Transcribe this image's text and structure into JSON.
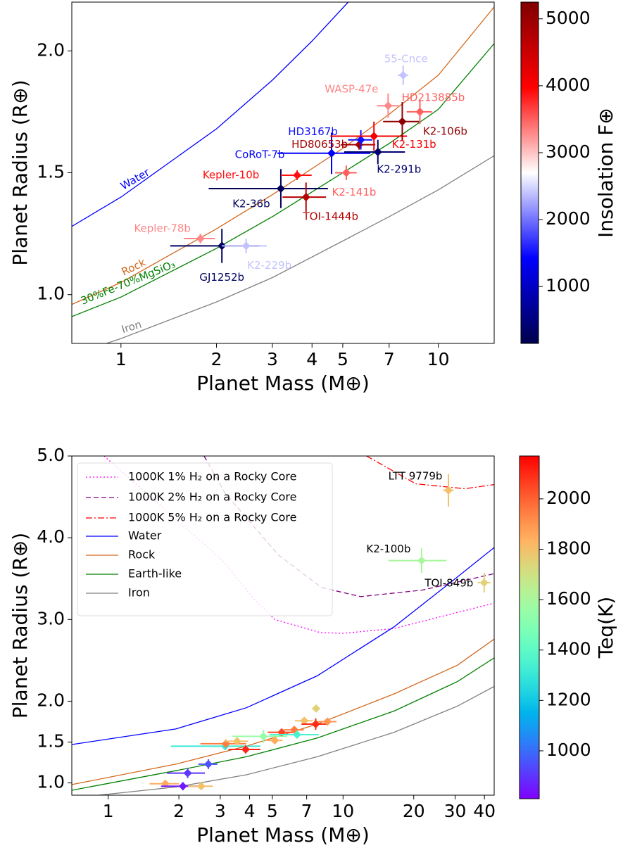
{
  "chart_data": [
    {
      "type": "scatter",
      "xlabel": "Planet Mass (M⊕)",
      "ylabel": "Planet Radius (R⊕)",
      "xscale": "log",
      "yscale": "linear",
      "xlim": [
        0.7,
        15
      ],
      "ylim": [
        0.8,
        2.2
      ],
      "xticks": [
        1,
        2,
        3,
        4,
        5,
        7,
        10
      ],
      "yticks": [
        {
          "value": 1,
          "label": "1.0"
        },
        {
          "value": 1.5,
          "label": "1.5"
        },
        {
          "value": 2,
          "label": "2.0"
        }
      ],
      "legend": false,
      "curves": [
        {
          "name": "Water",
          "color": "#0000ff",
          "dash": "solid",
          "x": [
            0.7,
            1,
            2,
            3,
            4,
            5.2
          ],
          "y": [
            1.28,
            1.4,
            1.68,
            1.88,
            2.04,
            2.2
          ]
        },
        {
          "name": "Rock",
          "color": "#d2691e",
          "dash": "solid",
          "x": [
            0.7,
            1,
            2,
            3,
            5,
            7,
            10,
            15
          ],
          "y": [
            0.96,
            1.05,
            1.27,
            1.41,
            1.6,
            1.74,
            1.9,
            2.18
          ]
        },
        {
          "name": "30%Fe-70%MgSiO₃",
          "color": "#008000",
          "dash": "solid",
          "x": [
            0.7,
            1,
            2,
            3,
            5,
            7,
            10,
            15
          ],
          "y": [
            0.91,
            0.99,
            1.19,
            1.32,
            1.5,
            1.62,
            1.76,
            2.03
          ]
        },
        {
          "name": "Iron",
          "color": "#808080",
          "dash": "solid",
          "x": [
            0.9,
            1,
            2,
            3,
            5,
            7,
            10,
            15
          ],
          "y": [
            0.8,
            0.82,
            0.97,
            1.07,
            1.22,
            1.32,
            1.43,
            1.57
          ]
        }
      ],
      "points": {
        "labels": [
          "Kepler-78b",
          "GJ1252b",
          "K2-229b",
          "K2-36b",
          "Kepler-10b",
          "TOI-1444b",
          "CoRoT-7b",
          "K2-141b",
          "HD80653b",
          "HD3167b",
          "K2-131b",
          "K2-291b",
          "K2-106b",
          "WASP-47e",
          "HD213885b",
          "55-Cnce"
        ],
        "x": [
          1.78,
          2.08,
          2.48,
          3.19,
          3.59,
          3.83,
          4.61,
          5.13,
          5.63,
          5.7,
          6.27,
          6.45,
          7.7,
          6.95,
          8.75,
          7.75
        ],
        "y": [
          1.23,
          1.2,
          1.2,
          1.435,
          1.49,
          1.4,
          1.58,
          1.5,
          1.615,
          1.635,
          1.65,
          1.585,
          1.71,
          1.775,
          1.75,
          1.9
        ],
        "xerr": [
          0.2,
          0.65,
          0.4,
          1.3,
          0.4,
          0.6,
          1.5,
          0.4,
          0.7,
          0.5,
          1.7,
          1.4,
          1.0,
          0.55,
          0.8,
          0.3
        ],
        "yerr": [
          0.02,
          0.07,
          0.03,
          0.08,
          0.02,
          0.06,
          0.085,
          0.03,
          0.02,
          0.04,
          0.06,
          0.05,
          0.08,
          0.05,
          0.05,
          0.04
        ],
        "color_values": [
          3300,
          300,
          2400,
          250,
          3900,
          4700,
          1400,
          3500,
          4900,
          1500,
          4100,
          400,
          5100,
          3300,
          3500,
          2400
        ]
      },
      "colorbar": {
        "label": "Insolation F⊕",
        "cmap": "seismic",
        "clim": [
          150,
          5250
        ],
        "ticks": [
          1000,
          2000,
          3000,
          4000,
          5000
        ]
      }
    },
    {
      "type": "scatter",
      "xlabel": "Planet Mass (M⊕)",
      "ylabel": "Planet Radius (R⊕)",
      "xscale": "log",
      "yscale": "linear",
      "xlim": [
        0.7,
        44
      ],
      "ylim": [
        0.85,
        5.0
      ],
      "xticks": [
        1,
        2,
        3,
        4,
        5,
        7,
        10,
        20,
        30,
        40
      ],
      "yticks": [
        {
          "value": 1,
          "label": "1.0"
        },
        {
          "value": 1.5,
          "label": "1.5"
        },
        {
          "value": 2,
          "label": "2.0"
        },
        {
          "value": 3,
          "label": "3.0"
        },
        {
          "value": 4,
          "label": "4.0"
        },
        {
          "value": 5,
          "label": "5.0"
        }
      ],
      "legend": true,
      "legend_loc": "upper left",
      "curves": [
        {
          "name": "1000K 1% H₂ on a Rocky Core",
          "color": "#ff00ff",
          "dash": "dotted",
          "x": [
            0.96,
            3.05,
            4.15,
            5.12,
            8.0,
            10,
            16.5,
            44
          ],
          "y": [
            5.0,
            3.73,
            3.26,
            3.0,
            2.84,
            2.83,
            2.89,
            3.2
          ]
        },
        {
          "name": "1000K 2% H₂ on a Rocky Core",
          "color": "#800080",
          "dash": "dashed",
          "x": [
            2.56,
            3.14,
            5.3,
            8.1,
            11.9,
            21.8,
            44
          ],
          "y": [
            5.0,
            4.55,
            3.79,
            3.39,
            3.28,
            3.36,
            3.56
          ]
        },
        {
          "name": "1000K 5% H₂ on a Rocky Core",
          "color": "#ff0000",
          "dash": "dashdot",
          "x": [
            12.6,
            20.4,
            33,
            44
          ],
          "y": [
            5.0,
            4.66,
            4.6,
            4.65
          ]
        },
        {
          "name": "Water",
          "color": "#0000ff",
          "dash": "solid",
          "x": [
            0.7,
            1.94,
            3.88,
            7.76,
            16.5,
            30.7,
            44
          ],
          "y": [
            1.47,
            1.66,
            1.92,
            2.31,
            2.91,
            3.52,
            3.88
          ]
        },
        {
          "name": "Rock",
          "color": "#d2691e",
          "dash": "solid",
          "x": [
            0.7,
            1.94,
            3.88,
            7.76,
            16.5,
            30.7,
            44
          ],
          "y": [
            0.98,
            1.23,
            1.45,
            1.72,
            2.09,
            2.44,
            2.76
          ]
        },
        {
          "name": "Earth-like",
          "color": "#008000",
          "dash": "solid",
          "x": [
            0.7,
            1.94,
            3.88,
            7.76,
            16.5,
            30.7,
            44
          ],
          "y": [
            0.91,
            1.15,
            1.32,
            1.55,
            1.88,
            2.24,
            2.53
          ]
        },
        {
          "name": "Iron",
          "color": "#808080",
          "dash": "solid",
          "x": [
            0.91,
            1.94,
            3.88,
            7.76,
            16.5,
            30.7,
            44
          ],
          "y": [
            0.85,
            0.95,
            1.1,
            1.32,
            1.62,
            1.94,
            2.18
          ]
        }
      ],
      "points": {
        "labels": [
          null,
          null,
          null,
          null,
          null,
          null,
          null,
          null,
          null,
          null,
          null,
          null,
          null,
          null,
          null,
          null,
          null,
          null,
          "K2-100b",
          "LTT 9779b",
          "TOI-849b"
        ],
        "x": [
          1.75,
          2.08,
          2.49,
          2.18,
          2.67,
          3.15,
          3.17,
          3.54,
          3.85,
          4.58,
          5.12,
          5.48,
          6.2,
          6.37,
          6.84,
          7.65,
          7.68,
          8.58,
          21.6,
          28.1,
          39.9
        ],
        "y": [
          0.99,
          0.96,
          0.96,
          1.12,
          1.23,
          1.45,
          1.48,
          1.51,
          1.41,
          1.57,
          1.52,
          1.62,
          1.65,
          1.59,
          1.76,
          1.72,
          1.91,
          1.75,
          3.72,
          4.58,
          3.45
        ],
        "xerr": [
          0.25,
          0.4,
          0.3,
          0.4,
          0.25,
          1.3,
          0.7,
          0.4,
          0.6,
          1.2,
          0.4,
          0.7,
          0.6,
          1.5,
          0.6,
          1.0,
          0.3,
          0.8,
          6,
          1.5,
          2.5
        ],
        "yerr": [
          0.02,
          0.05,
          0.03,
          0.06,
          0.06,
          0.04,
          0.05,
          0.03,
          0.05,
          0.08,
          0.03,
          0.03,
          0.03,
          0.04,
          0.04,
          0.07,
          0.04,
          0.04,
          0.15,
          0.2,
          0.12
        ],
        "color_values": [
          1850,
          850,
          1800,
          900,
          950,
          1300,
          1950,
          1800,
          2100,
          1550,
          1850,
          2050,
          1950,
          1350,
          1800,
          2100,
          1750,
          1900,
          1600,
          1800,
          1750
        ]
      },
      "colorbar": {
        "label": "Teq(K)",
        "cmap": "rainbow",
        "clim": [
          810,
          2170
        ],
        "ticks": [
          1000,
          1200,
          1400,
          1600,
          1800,
          2000
        ]
      }
    }
  ]
}
